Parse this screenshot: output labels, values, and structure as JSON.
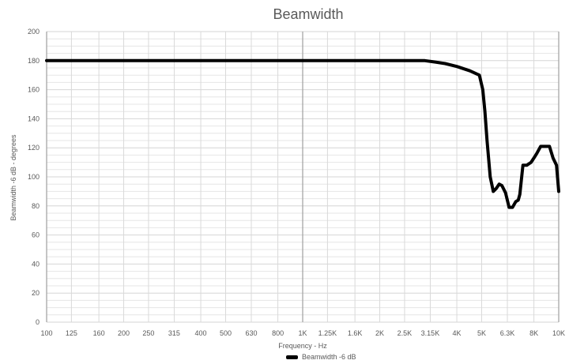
{
  "chart_data": {
    "type": "line",
    "title": "Beamwidth",
    "xlabel": "Frequency - Hz",
    "ylabel": "Beamwidth  -6 dB - degrees",
    "x_scale": "log",
    "xlim": [
      100,
      10000
    ],
    "ylim": [
      0,
      200
    ],
    "y_ticks": [
      0,
      20,
      40,
      60,
      80,
      100,
      120,
      140,
      160,
      180,
      200
    ],
    "x_ticks": [
      {
        "value": 100,
        "label": "100"
      },
      {
        "value": 125,
        "label": "125"
      },
      {
        "value": 160,
        "label": "160"
      },
      {
        "value": 200,
        "label": "200"
      },
      {
        "value": 250,
        "label": "250"
      },
      {
        "value": 315,
        "label": "315"
      },
      {
        "value": 400,
        "label": "400"
      },
      {
        "value": 500,
        "label": "500"
      },
      {
        "value": 630,
        "label": "630"
      },
      {
        "value": 800,
        "label": "800"
      },
      {
        "value": 1000,
        "label": "1K"
      },
      {
        "value": 1250,
        "label": "1.25K"
      },
      {
        "value": 1600,
        "label": "1.6K"
      },
      {
        "value": 2000,
        "label": "2K"
      },
      {
        "value": 2500,
        "label": "2.5K"
      },
      {
        "value": 3150,
        "label": "3.15K"
      },
      {
        "value": 4000,
        "label": "4K"
      },
      {
        "value": 5000,
        "label": "5K"
      },
      {
        "value": 6300,
        "label": "6.3K"
      },
      {
        "value": 8000,
        "label": "8K"
      },
      {
        "value": 10000,
        "label": "10K"
      }
    ],
    "grid": true,
    "legend_position": "bottom",
    "series": [
      {
        "name": "Beamwidth -6 dB",
        "color": "#000000",
        "x": [
          100,
          1000,
          2000,
          3000,
          3300,
          3600,
          4000,
          4500,
          4900,
          5050,
          5150,
          5250,
          5400,
          5550,
          5700,
          5850,
          6000,
          6200,
          6400,
          6600,
          6800,
          6950,
          7050,
          7250,
          7500,
          7800,
          8000,
          8200,
          8500,
          8800,
          9200,
          9500,
          9800,
          10000
        ],
        "y": [
          180,
          180,
          180,
          180,
          179,
          178,
          176,
          173,
          170,
          160,
          145,
          125,
          100,
          90,
          92,
          95,
          94,
          89,
          79,
          79,
          83,
          84,
          88,
          108,
          108,
          110,
          113,
          116,
          121,
          121,
          121,
          113,
          108,
          90
        ]
      }
    ]
  }
}
